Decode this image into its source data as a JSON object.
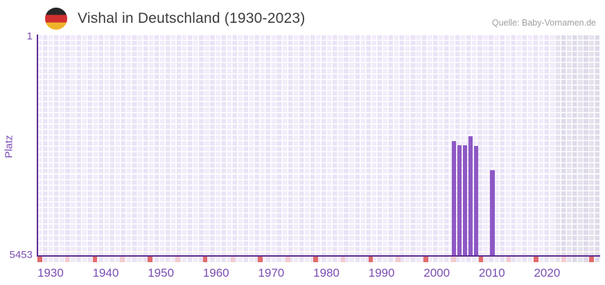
{
  "header": {
    "flag_icon": "german-flag",
    "title": "Vishal in Deutschland (1930-2023)",
    "source": "Quelle: Baby-Vornamen.de"
  },
  "chart_data": {
    "type": "bar",
    "title": "Vishal in Deutschland (1930-2023)",
    "source": "Quelle: Baby-Vornamen.de",
    "xlabel": "",
    "ylabel": "Platz",
    "y_axis": {
      "top_tick_label": "1",
      "bottom_tick_label": "5453",
      "min": 1,
      "max": 5453,
      "inverted": true
    },
    "x_axis": {
      "data_start_year": 1930,
      "data_end_year": 2023,
      "axis_start_year": 1930,
      "axis_end_year": 2031,
      "decade_tick_labels": [
        "1930",
        "1940",
        "1950",
        "1960",
        "1970",
        "1980",
        "1990",
        "2000",
        "2010",
        "2020"
      ],
      "major_tick_every": 10,
      "minor_tick_every": 5,
      "future_shade_from_year": 2024
    },
    "series": [
      {
        "name": "Platz",
        "points": [
          {
            "year": 2005,
            "rank": 2620
          },
          {
            "year": 2006,
            "rank": 2720
          },
          {
            "year": 2007,
            "rank": 2720
          },
          {
            "year": 2008,
            "rank": 2510
          },
          {
            "year": 2009,
            "rank": 2740
          },
          {
            "year": 2012,
            "rank": 3340
          }
        ]
      }
    ],
    "legend": [],
    "grid": true,
    "colors": {
      "bar": "#8e58c5",
      "axis_line": "#5b2c91",
      "axis_label": "#7a4db3",
      "major_tick": "#e26b6b",
      "minor_tick": "#f2cbd1",
      "plot_bg": "#f2ecfa",
      "plot_bg_alt": "#ebe3f6",
      "future_bg": "#e6e2ee",
      "future_bg_alt": "#dfdae9",
      "flag_black": "#262626",
      "flag_red": "#d23030",
      "flag_gold": "#f0b32a"
    }
  }
}
